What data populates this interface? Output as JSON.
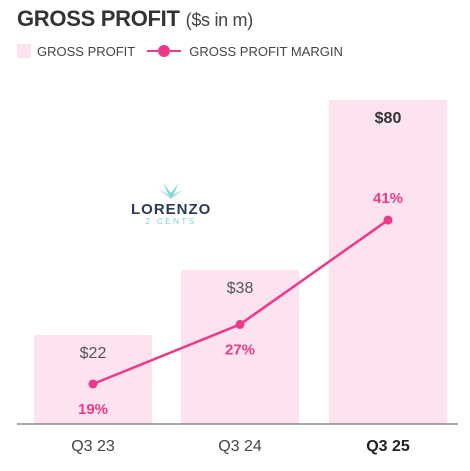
{
  "header": {
    "title": "GROSS PROFIT",
    "unit": "($s in m)"
  },
  "legend": {
    "bar_label": "GROSS PROFIT",
    "line_label": "GROSS PROFIT MARGIN"
  },
  "watermark": {
    "text": "LORENZO",
    "sub": "2 CENTS"
  },
  "colors": {
    "bar": "#fde3f0",
    "line": "#ee3889",
    "axis": "#555555",
    "value_text": "#555555"
  },
  "chart_data": {
    "type": "bar",
    "title": "GROSS PROFIT ($s in m)",
    "categories": [
      "Q3 23",
      "Q3 24",
      "Q3 25"
    ],
    "series": [
      {
        "name": "GROSS PROFIT",
        "type": "bar",
        "values": [
          22,
          38,
          80
        ],
        "labels": [
          "$22",
          "$38",
          "$80"
        ]
      },
      {
        "name": "GROSS PROFIT MARGIN",
        "type": "line",
        "values": [
          19,
          27,
          41
        ],
        "labels": [
          "19%",
          "27%",
          "41%"
        ]
      }
    ],
    "highlight_category": "Q3 25",
    "grid": false,
    "legend_position": "top-left"
  }
}
